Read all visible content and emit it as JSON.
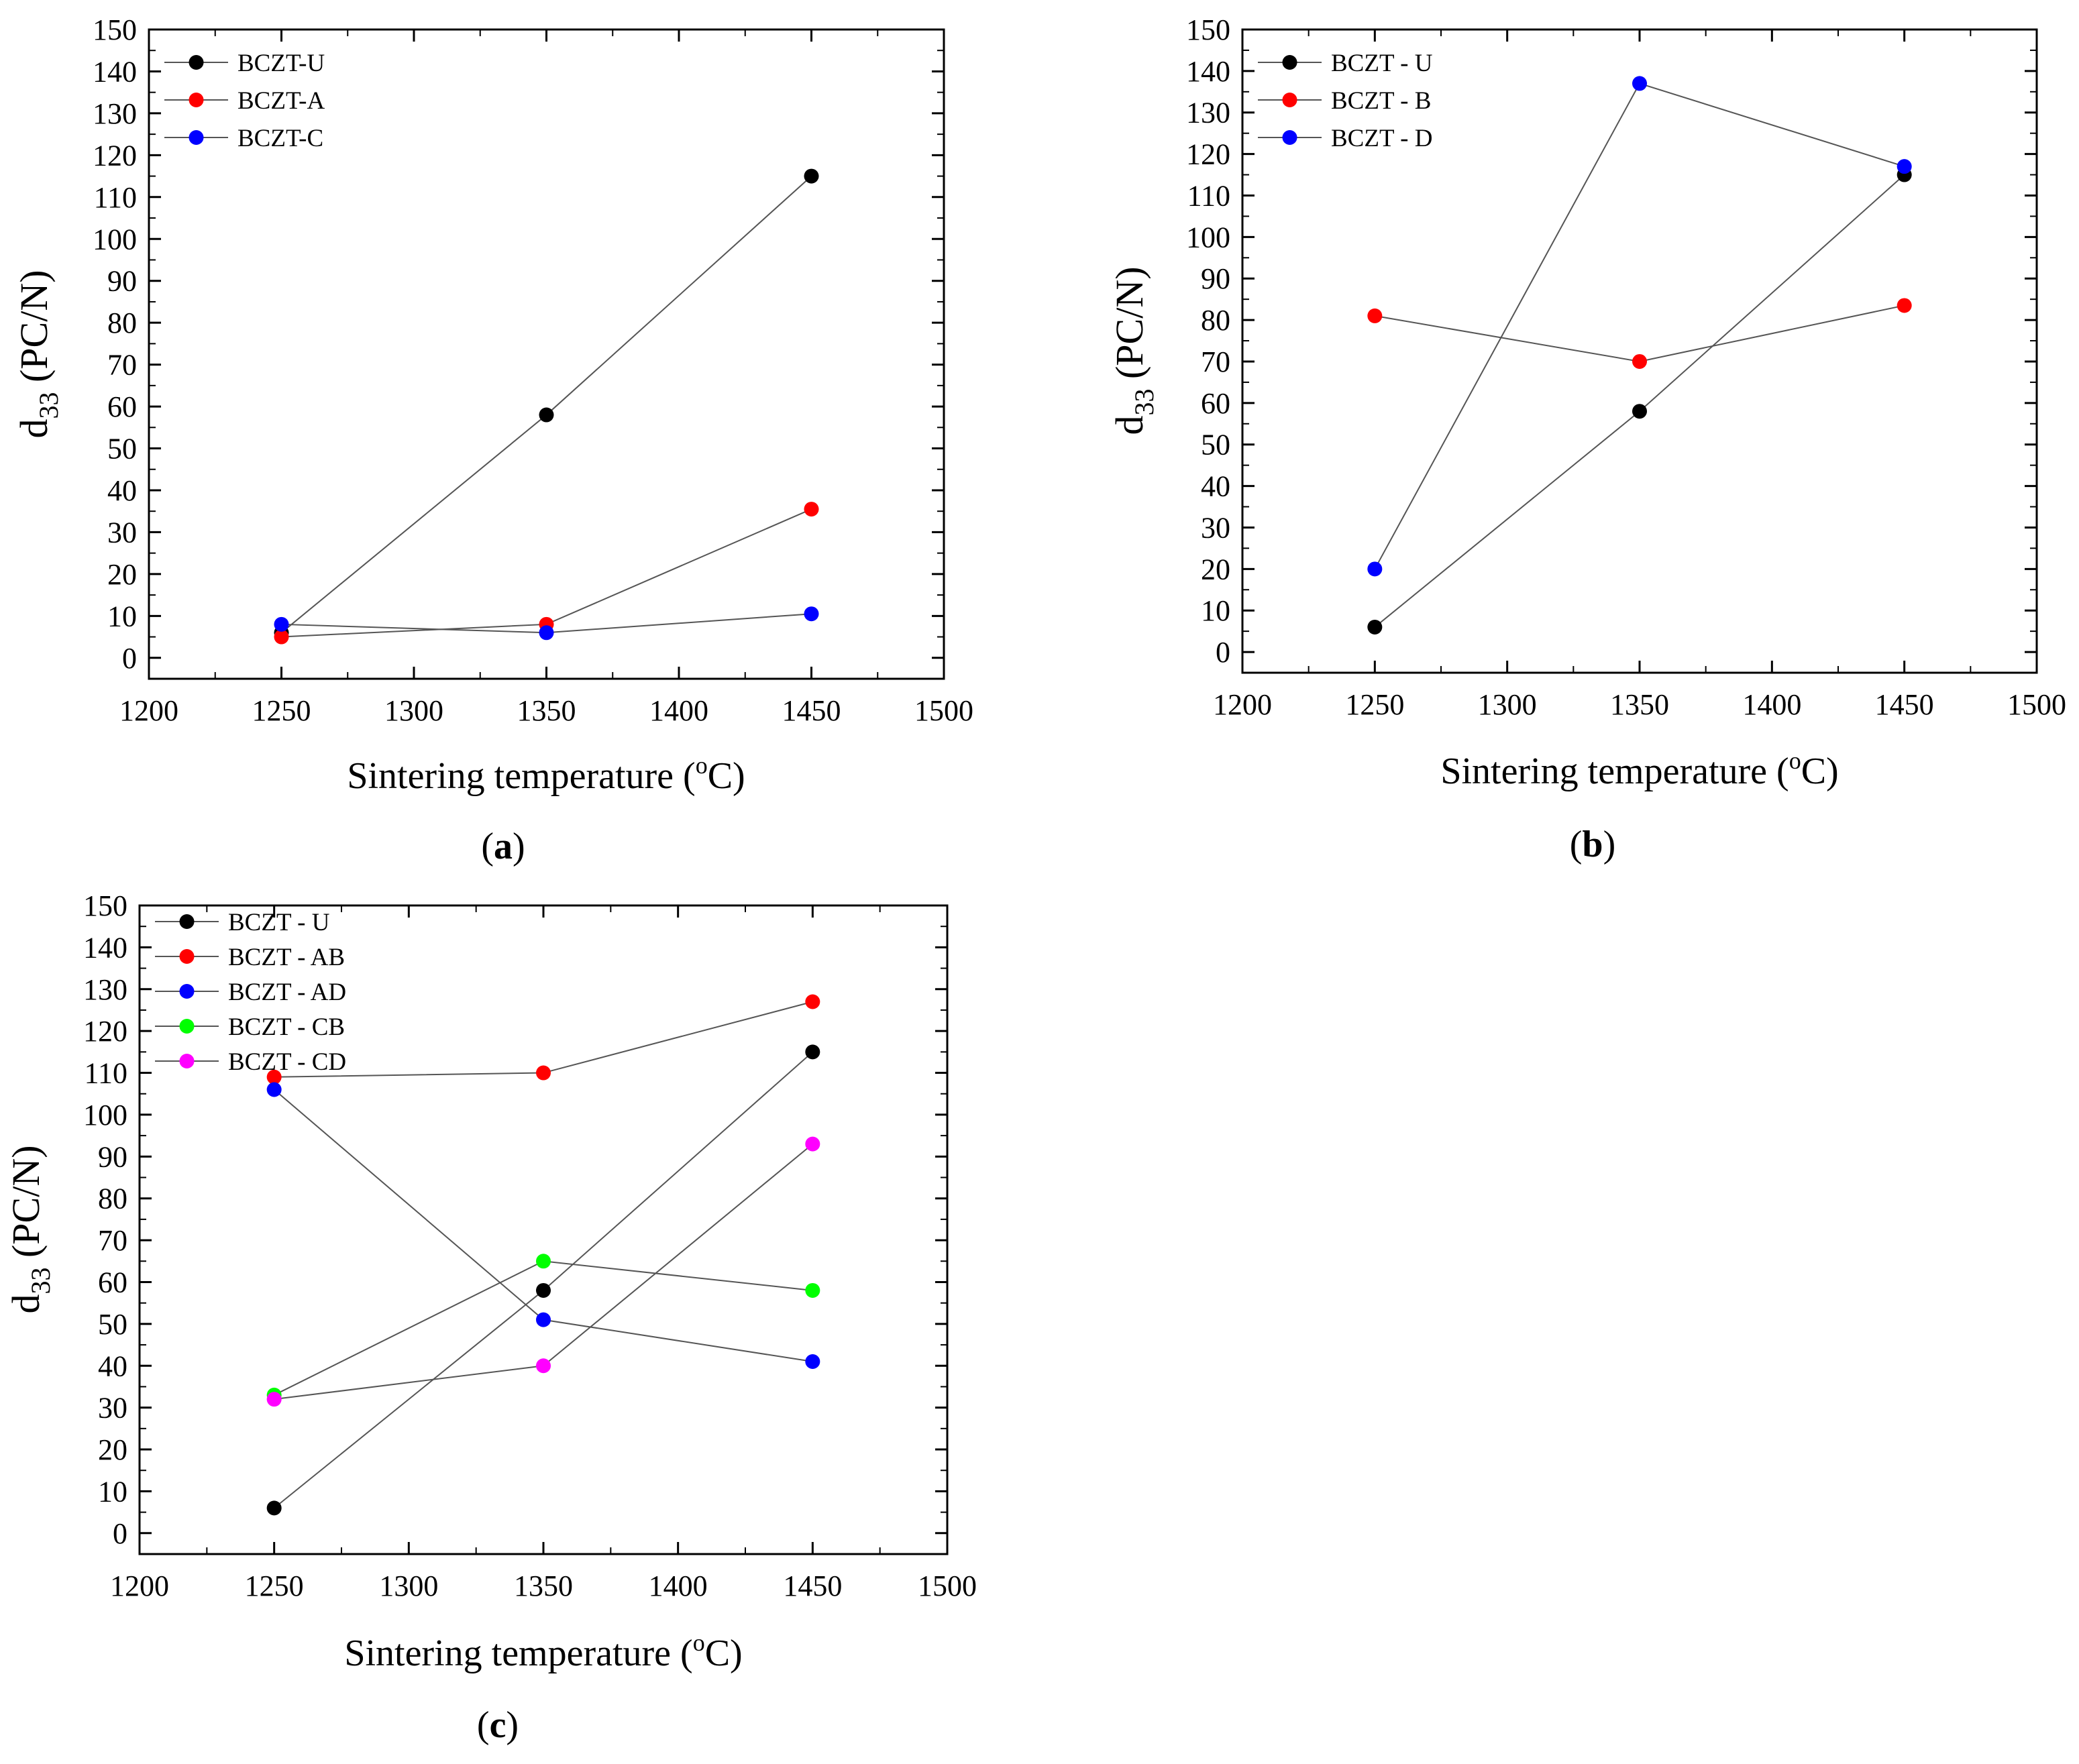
{
  "chart_data": [
    {
      "type": "line",
      "panel": "a",
      "caption_letter": "a",
      "xlabel": "Sintering temperature (",
      "xlabel_sup": "o",
      "xlabel_unit": "C)",
      "ylabel_main": "d",
      "ylabel_sub": "33",
      "ylabel_rest": " (PC/N)",
      "xlim": [
        1200,
        1500
      ],
      "ylim": [
        -5,
        150
      ],
      "xticks": [
        1200,
        1250,
        1300,
        1350,
        1400,
        1450,
        1500
      ],
      "yticks": [
        0,
        10,
        20,
        30,
        40,
        50,
        60,
        70,
        80,
        90,
        100,
        110,
        120,
        130,
        140,
        150
      ],
      "legend_position": "top-left",
      "x": [
        1250,
        1350,
        1450
      ],
      "series": [
        {
          "name": "BCZT-U",
          "color": "#000000",
          "values": [
            6,
            58,
            115
          ]
        },
        {
          "name": "BCZT-A",
          "color": "#ff0000",
          "values": [
            5,
            8,
            35.5
          ]
        },
        {
          "name": "BCZT-C",
          "color": "#0000ff",
          "values": [
            8,
            6,
            10.5
          ]
        }
      ]
    },
    {
      "type": "line",
      "panel": "b",
      "caption_letter": "b",
      "xlabel": "Sintering temperature (",
      "xlabel_sup": "o",
      "xlabel_unit": "C)",
      "ylabel_main": "d",
      "ylabel_sub": "33",
      "ylabel_rest": " (PC/N)",
      "xlim": [
        1200,
        1500
      ],
      "ylim": [
        -5,
        150
      ],
      "xticks": [
        1200,
        1250,
        1300,
        1350,
        1400,
        1450,
        1500
      ],
      "yticks": [
        0,
        10,
        20,
        30,
        40,
        50,
        60,
        70,
        80,
        90,
        100,
        110,
        120,
        130,
        140,
        150
      ],
      "legend_position": "top-left",
      "x": [
        1250,
        1350,
        1450
      ],
      "series": [
        {
          "name": "BCZT - U",
          "color": "#000000",
          "values": [
            6,
            58,
            115
          ]
        },
        {
          "name": "BCZT - B",
          "color": "#ff0000",
          "values": [
            81,
            70,
            83.5
          ]
        },
        {
          "name": "BCZT - D",
          "color": "#0000ff",
          "values": [
            20,
            137,
            117
          ]
        }
      ]
    },
    {
      "type": "line",
      "panel": "c",
      "caption_letter": "c",
      "xlabel": "Sintering temperature (",
      "xlabel_sup": "o",
      "xlabel_unit": "C)",
      "ylabel_main": "d",
      "ylabel_sub": "33",
      "ylabel_rest": " (PC/N)",
      "xlim": [
        1200,
        1500
      ],
      "ylim": [
        -5,
        150
      ],
      "xticks": [
        1200,
        1250,
        1300,
        1350,
        1400,
        1450,
        1500
      ],
      "yticks": [
        0,
        10,
        20,
        30,
        40,
        50,
        60,
        70,
        80,
        90,
        100,
        110,
        120,
        130,
        140,
        150
      ],
      "legend_position": "top-left",
      "x": [
        1250,
        1350,
        1450
      ],
      "series": [
        {
          "name": "BCZT - U",
          "color": "#000000",
          "values": [
            6,
            58,
            115
          ]
        },
        {
          "name": "BCZT - AB",
          "color": "#ff0000",
          "values": [
            109,
            110,
            127
          ]
        },
        {
          "name": "BCZT - AD",
          "color": "#0000ff",
          "values": [
            106,
            51,
            41
          ]
        },
        {
          "name": "BCZT - CB",
          "color": "#00ff00",
          "values": [
            33,
            65,
            58
          ]
        },
        {
          "name": "BCZT - CD",
          "color": "#ff00ff",
          "values": [
            32,
            40,
            93
          ]
        }
      ]
    }
  ]
}
